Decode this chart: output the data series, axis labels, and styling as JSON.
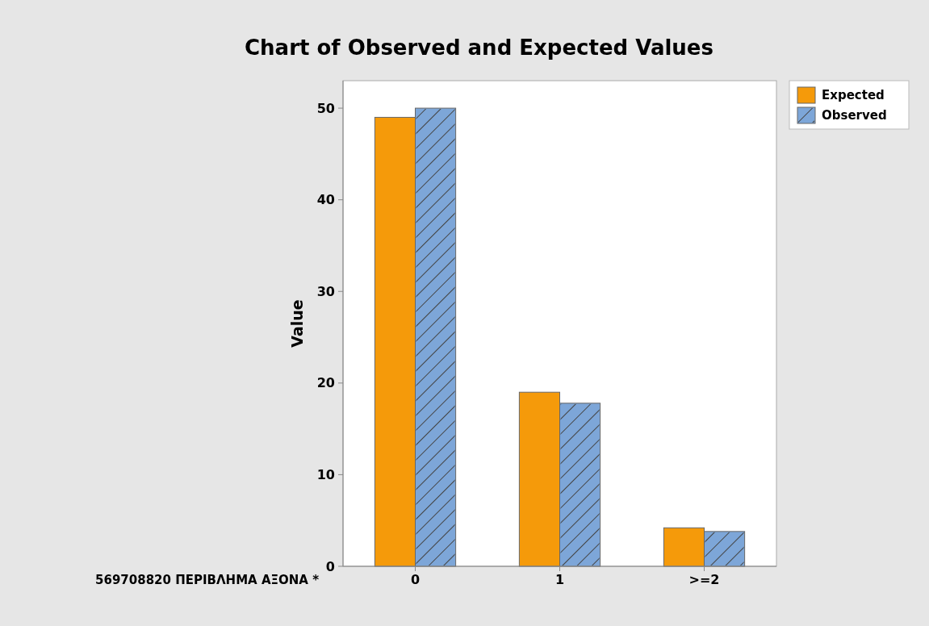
{
  "chart_data": {
    "type": "bar",
    "title": "Chart of Observed and Expected Values",
    "xlabel": "569708820 ΠΕΡΙΒΛΗΜΑ ΑΞΟΝΑ *",
    "ylabel": "Value",
    "categories": [
      "0",
      "1",
      ">=2"
    ],
    "series": [
      {
        "name": "Expected",
        "color": "#f59a0a",
        "values": [
          49,
          19,
          4.2
        ]
      },
      {
        "name": "Observed",
        "color": "#7da6d8",
        "values": [
          50,
          17.8,
          3.8
        ]
      }
    ],
    "ylim": [
      0,
      53
    ],
    "yticks": [
      0,
      10,
      20,
      30,
      40,
      50
    ],
    "grid": false,
    "legend": "top right"
  }
}
